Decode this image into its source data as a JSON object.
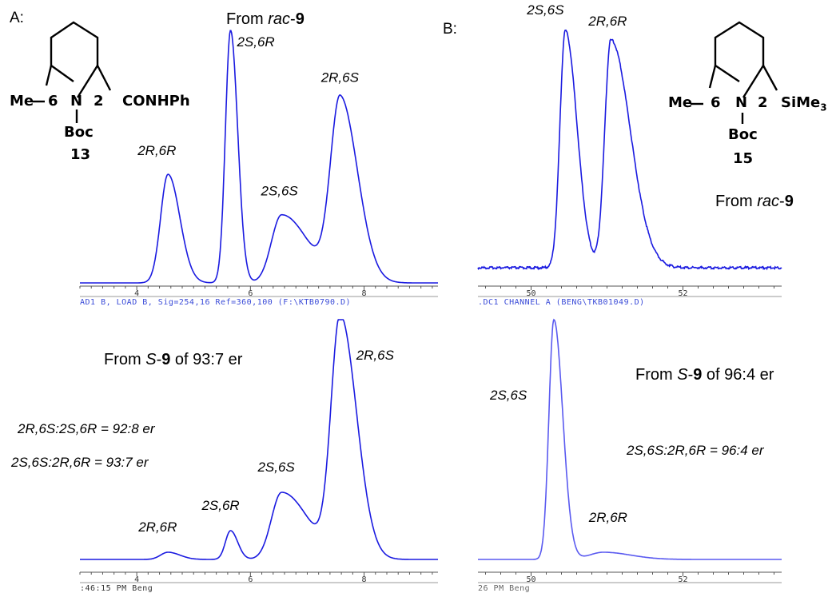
{
  "panels": {
    "a_label": "A:",
    "b_label": "B:"
  },
  "structures": {
    "compound_13": {
      "me": "Me",
      "pos6": "6",
      "n": "N",
      "pos2": "2",
      "substituent": "CONHPh",
      "boc": "Boc",
      "number": "13"
    },
    "compound_15": {
      "me": "Me",
      "pos6": "6",
      "n": "N",
      "pos2": "2",
      "substituent": "SiMe",
      "substituent_sub": "3",
      "boc": "Boc",
      "number": "15"
    }
  },
  "captions": {
    "a_top": {
      "prefix": "From ",
      "italic": "rac",
      "dash": "-",
      "bold": "9"
    },
    "a_bottom": {
      "prefix": "From ",
      "italic": "S",
      "dash": "-",
      "bold": "9",
      "suffix": " of 93:7 er"
    },
    "b_top": {
      "prefix": "From ",
      "italic": "rac",
      "dash": "-",
      "bold": "9"
    },
    "b_bottom": {
      "prefix": "From ",
      "italic": "S",
      "dash": "-",
      "bold": "9",
      "suffix": " of 96:4 er"
    },
    "a_ratio1": "2R,6S:2S,6R = 92:8 er",
    "a_ratio2": "2S,6S:2R,6R = 93:7 er",
    "b_ratio": "2S,6S:2R,6R = 96:4 er"
  },
  "footers": {
    "a_top": "AD1 B, LOAD B, Sig=254,16 Ref=360,100 (F:\\KTB0790.D)",
    "b_top": ".DC1 CHANNEL A (BENG\\TKB01049.D)",
    "a_bottom": ":46:15 PM Beng",
    "b_bottom": "26 PM Beng"
  },
  "colors": {
    "trace_dark": "#1a1ae0",
    "trace_light": "#5a5af0",
    "footer_blue": "#3a4bd8",
    "axis": "#555555"
  },
  "chart_data": [
    {
      "id": "A-top",
      "type": "line",
      "title": "From rac-9",
      "xlabel": "",
      "ylabel": "",
      "xlim": [
        3.0,
        9.3
      ],
      "xticks": [
        "4",
        "6",
        "8"
      ],
      "xtick_values": [
        4,
        6,
        8
      ],
      "peaks": [
        {
          "label": "2R,6R",
          "x": 4.55,
          "height": 0.43
        },
        {
          "label": "2S,6R",
          "x": 5.65,
          "height": 1.0
        },
        {
          "label": "2S,6S",
          "x": 6.55,
          "height": 0.27
        },
        {
          "label": "2R,6S",
          "x": 7.58,
          "height": 0.72
        }
      ],
      "baseline": 0.0,
      "grid": false
    },
    {
      "id": "B-top",
      "type": "line",
      "title": "From rac-9",
      "xlabel": "",
      "ylabel": "",
      "xlim": [
        49.3,
        53.3
      ],
      "xticks": [
        "50",
        "52"
      ],
      "xtick_values": [
        50,
        52
      ],
      "peaks": [
        {
          "label": "2S,6S",
          "x": 50.45,
          "height": 1.0
        },
        {
          "label": "2R,6R",
          "x": 51.05,
          "height": 0.96
        }
      ],
      "baseline": 0.0,
      "grid": false
    },
    {
      "id": "A-bottom",
      "type": "line",
      "title": "From S-9 of 93:7 er",
      "xlabel": "",
      "ylabel": "",
      "xlim": [
        3.0,
        9.3
      ],
      "xticks": [
        "4",
        "6",
        "8"
      ],
      "xtick_values": [
        4,
        6,
        8
      ],
      "peaks": [
        {
          "label": "2R,6R",
          "x": 4.55,
          "height": 0.03
        },
        {
          "label": "2S,6R",
          "x": 5.65,
          "height": 0.12
        },
        {
          "label": "2S,6S",
          "x": 6.55,
          "height": 0.28
        },
        {
          "label": "2R,6S",
          "x": 7.58,
          "height": 1.0
        }
      ],
      "annotations": [
        "2R,6S:2S,6R = 92:8 er",
        "2S,6S:2R,6R = 93:7 er"
      ],
      "baseline": 0.0,
      "grid": false
    },
    {
      "id": "B-bottom",
      "type": "line",
      "title": "From S-9 of 96:4 er",
      "xlabel": "",
      "ylabel": "",
      "xlim": [
        49.3,
        53.3
      ],
      "xticks": [
        "50",
        "52"
      ],
      "xtick_values": [
        50,
        52
      ],
      "peaks": [
        {
          "label": "2S,6S",
          "x": 50.3,
          "height": 1.0
        },
        {
          "label": "2R,6R",
          "x": 50.95,
          "height": 0.03
        }
      ],
      "annotations": [
        "2S,6S:2R,6R = 96:4 er"
      ],
      "baseline": 0.0,
      "grid": false
    }
  ]
}
